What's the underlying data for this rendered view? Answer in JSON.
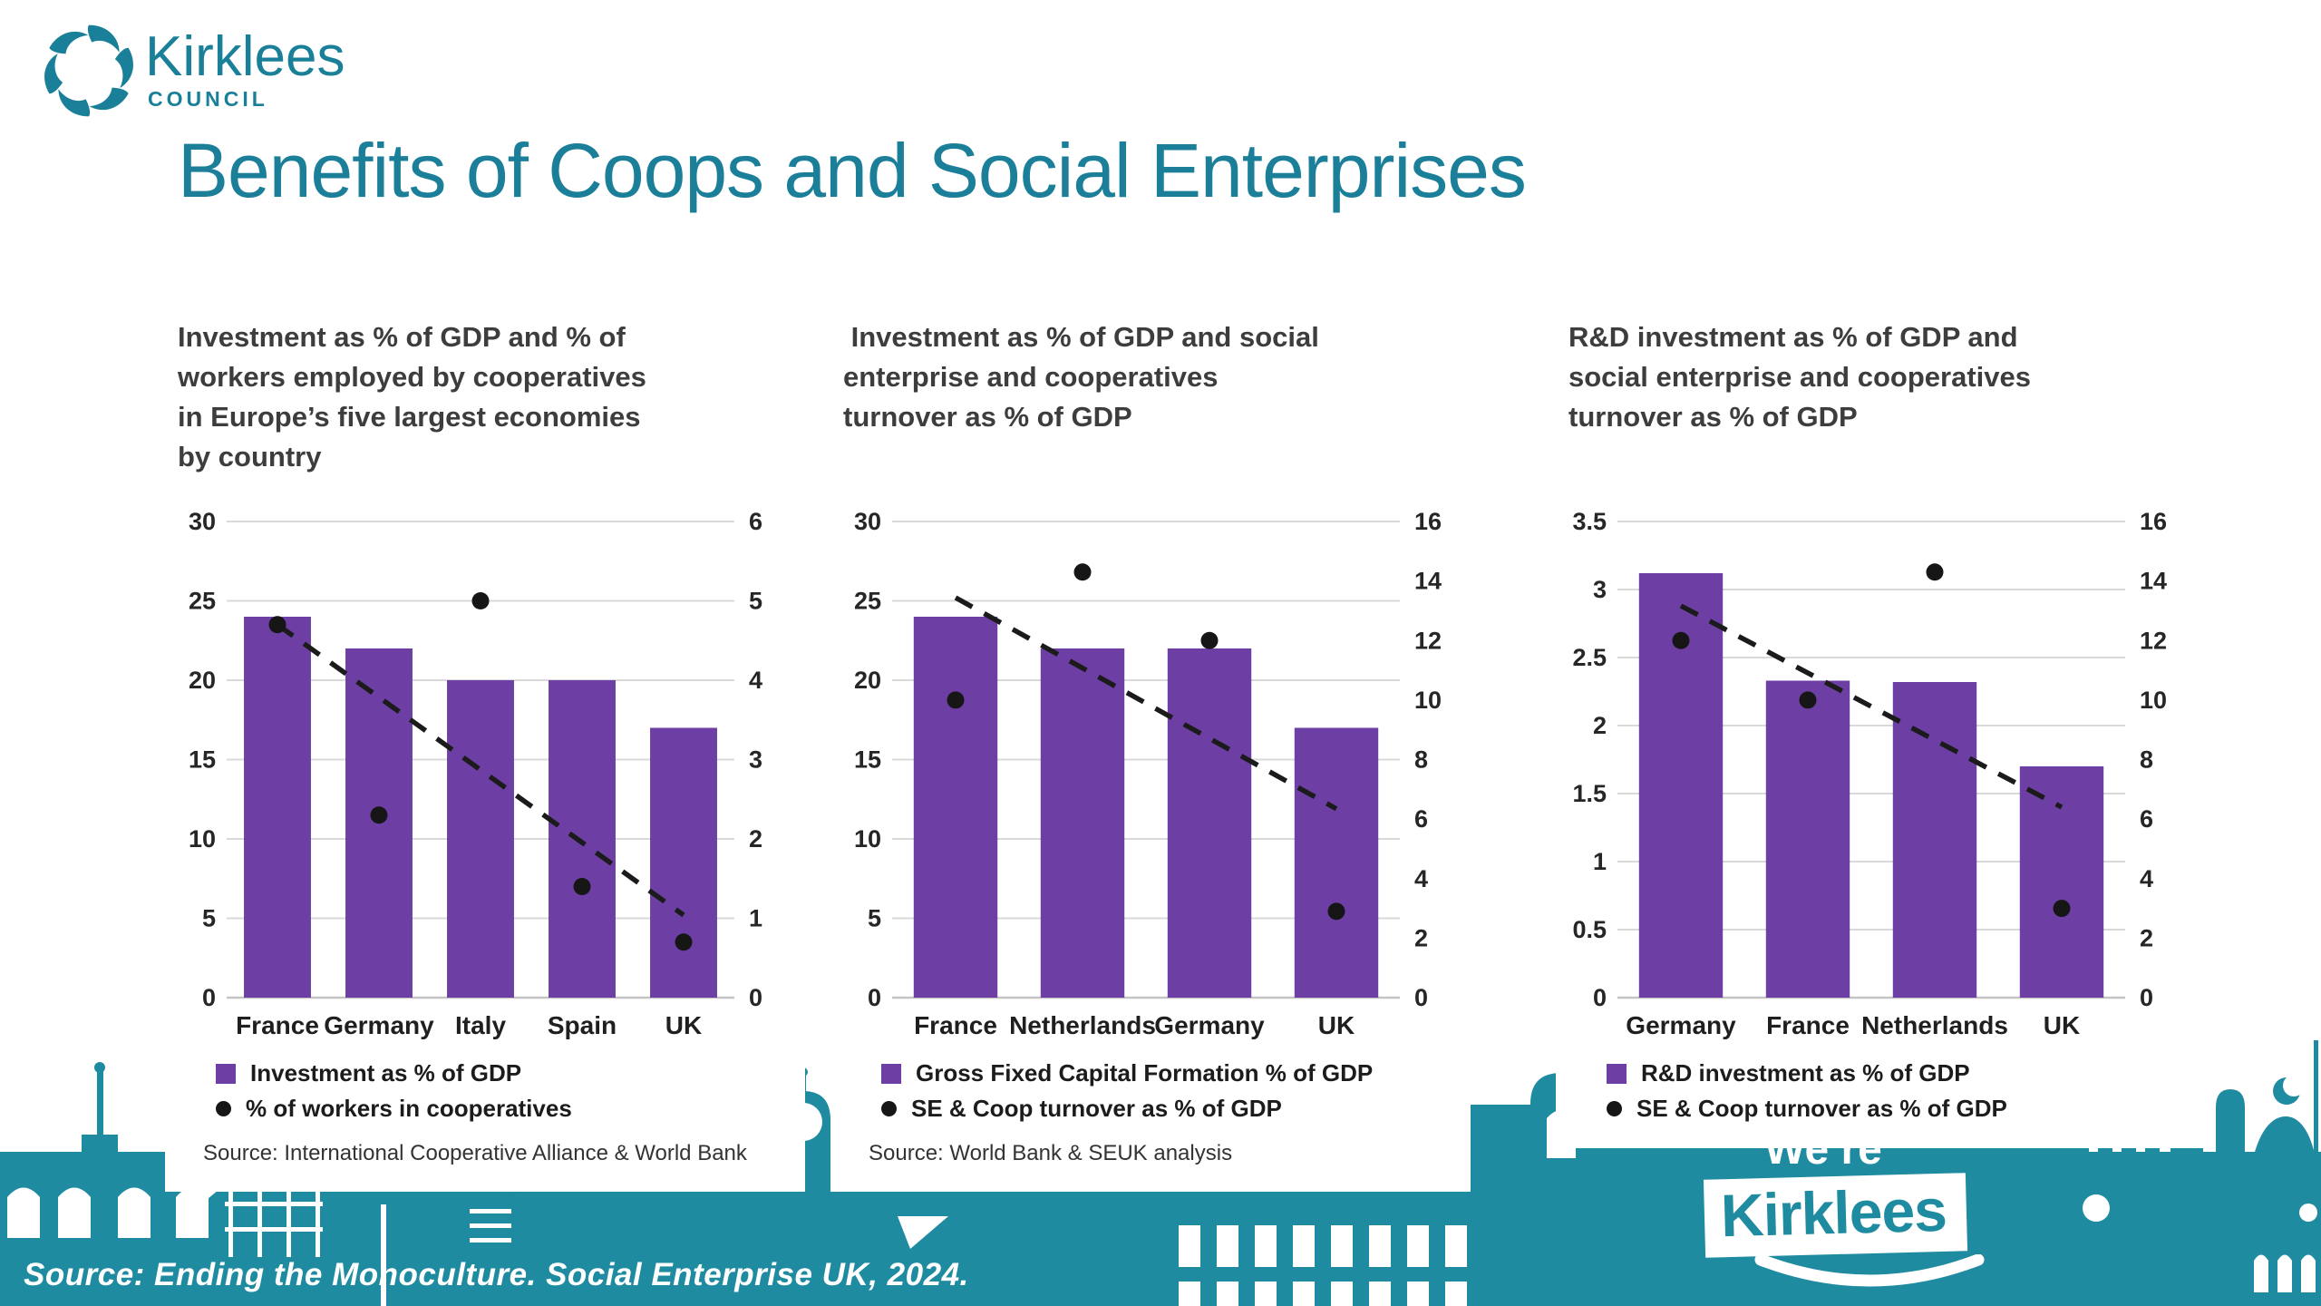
{
  "header": {
    "logo_name": "Kirklees",
    "logo_sub": "COUNCIL"
  },
  "title": "Benefits of Coops and Social Enterprises",
  "footer": {
    "source": "Source: Ending the Monoculture. Social Enterprise UK, 2024.",
    "brand_top": "We’re",
    "brand_bottom": "Kirklees"
  },
  "colors": {
    "teal": "#1a8099",
    "band": "#1f8ba1",
    "title_teal": "#1c7f99",
    "purple": "#6d3fa5",
    "dot": "#161616",
    "grid": "#d9d9d9"
  },
  "chart_data": [
    {
      "type": "bar+scatter",
      "title_lines": [
        "Investment as % of GDP and % of",
        "workers employed by cooperatives",
        "in Europe’s five largest economies",
        "by country"
      ],
      "title": "Investment as % of GDP and % of workers employed by cooperatives in Europe’s five largest economies by country",
      "categories": [
        "France",
        "Germany",
        "Italy",
        "Spain",
        "UK"
      ],
      "left_axis": {
        "min": 0,
        "max": 30,
        "labels": [
          "30",
          "25",
          "20",
          "15",
          "10",
          "5",
          "0"
        ]
      },
      "right_axis": {
        "min": 0,
        "max": 6,
        "labels": [
          "6",
          "5",
          "4",
          "3",
          "2",
          "1",
          "0"
        ]
      },
      "series": [
        {
          "name": "Investment as % of GDP",
          "type": "bar",
          "axis": "left",
          "values": [
            24,
            22,
            20,
            20,
            17
          ]
        },
        {
          "name": "% of workers in cooperatives",
          "type": "scatter",
          "axis": "right",
          "values": [
            4.7,
            2.3,
            5.0,
            1.4,
            0.7
          ]
        }
      ],
      "trend": {
        "axis": "left",
        "from": 23.5,
        "to": 5.2,
        "style": "dashed"
      },
      "legend": [
        {
          "marker": "square",
          "label": "Investment as % of GDP"
        },
        {
          "marker": "dot",
          "label": "% of workers in cooperatives"
        }
      ],
      "source": "Source: International Cooperative Alliance & World Bank",
      "grid": true,
      "legend_position": "bottom"
    },
    {
      "type": "bar+scatter",
      "title_lines": [
        " Investment as % of GDP and social",
        "enterprise and cooperatives",
        "turnover as % of GDP"
      ],
      "title": "Investment as % of GDP and social enterprise and cooperatives turnover as % of GDP",
      "categories": [
        "France",
        "Netherlands",
        "Germany",
        "UK"
      ],
      "left_axis": {
        "min": 0,
        "max": 30,
        "labels": [
          "30",
          "25",
          "20",
          "15",
          "10",
          "5",
          "0"
        ]
      },
      "right_axis": {
        "min": 0,
        "max": 16,
        "labels": [
          "16",
          "14",
          "12",
          "10",
          "8",
          "6",
          "4",
          "2",
          "0"
        ]
      },
      "series": [
        {
          "name": "Gross Fixed Capital Formation % of GDP",
          "type": "bar",
          "axis": "left",
          "values": [
            24,
            22,
            22,
            17
          ]
        },
        {
          "name": "SE & Coop turnover as % of GDP",
          "type": "scatter",
          "axis": "right",
          "values": [
            10,
            14.3,
            12,
            2.9
          ]
        }
      ],
      "trend": {
        "axis": "left",
        "from": 25.2,
        "to": 11.9,
        "style": "dashed"
      },
      "legend": [
        {
          "marker": "square",
          "label": "Gross Fixed Capital Formation % of GDP"
        },
        {
          "marker": "dot",
          "label": "SE & Coop turnover as % of GDP"
        }
      ],
      "source": "Source: World Bank & SEUK analysis",
      "grid": true,
      "legend_position": "bottom"
    },
    {
      "type": "bar+scatter",
      "title_lines": [
        "R&D investment as % of GDP and",
        "social enterprise and cooperatives",
        "turnover as % of GDP"
      ],
      "title": "R&D investment as % of GDP and social enterprise and cooperatives turnover as % of GDP",
      "categories": [
        "Germany",
        "France",
        "Netherlands",
        "UK"
      ],
      "left_axis": {
        "min": 0,
        "max": 3.5,
        "labels": [
          "3.5",
          "3",
          "2.5",
          "2",
          "1.5",
          "1",
          "0.5",
          "0"
        ]
      },
      "right_axis": {
        "min": 0,
        "max": 16,
        "labels": [
          "16",
          "14",
          "12",
          "10",
          "8",
          "6",
          "4",
          "2",
          "0"
        ]
      },
      "series": [
        {
          "name": "R&D investment as % of GDP",
          "type": "bar",
          "axis": "left",
          "values": [
            3.12,
            2.33,
            2.32,
            1.7
          ]
        },
        {
          "name": "SE & Coop turnover as % of GDP",
          "type": "scatter",
          "axis": "right",
          "values": [
            12,
            10,
            14.3,
            3
          ]
        }
      ],
      "trend": {
        "axis": "left",
        "from": 2.88,
        "to": 1.4,
        "style": "dashed"
      },
      "legend": [
        {
          "marker": "square",
          "label": "R&D investment as % of GDP"
        },
        {
          "marker": "dot",
          "label": "SE & Coop turnover as % of GDP"
        }
      ],
      "source": "",
      "grid": true,
      "legend_position": "bottom"
    }
  ]
}
